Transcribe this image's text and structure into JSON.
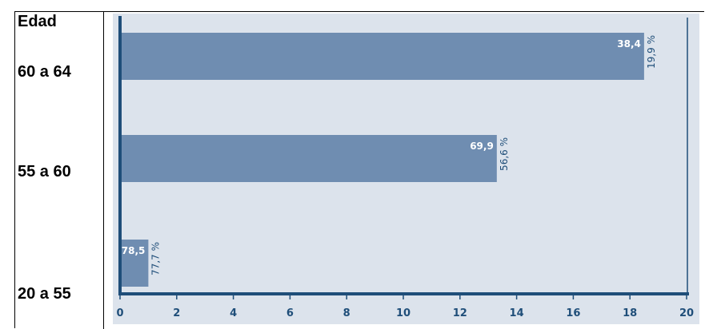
{
  "table": {
    "header": "Edad",
    "rows": [
      "60 a 64",
      "55 a 60",
      "20 a 55"
    ]
  },
  "chart_data": {
    "type": "bar",
    "orientation": "horizontal",
    "categories": [
      "60 a 64",
      "55 a 60",
      "20 a 55"
    ],
    "values": [
      18.5,
      13.3,
      1.0
    ],
    "bar_labels": [
      "38,4",
      "69,9",
      "78,5"
    ],
    "percent_labels": [
      "19,9 %",
      "56,6 %",
      "77,7 %"
    ],
    "xlim": [
      0,
      20
    ],
    "xticks": [
      "0",
      "2",
      "4",
      "6",
      "8",
      "10",
      "12",
      "14",
      "16",
      "18",
      "20"
    ],
    "grid": false,
    "colors": {
      "background": "#dce3ec",
      "bar": "#6f8db1",
      "axis": "#1f4e79",
      "tick_text": "#1f4e79",
      "percent_text": "#1f4e79",
      "value_text": "#ffffff"
    }
  }
}
